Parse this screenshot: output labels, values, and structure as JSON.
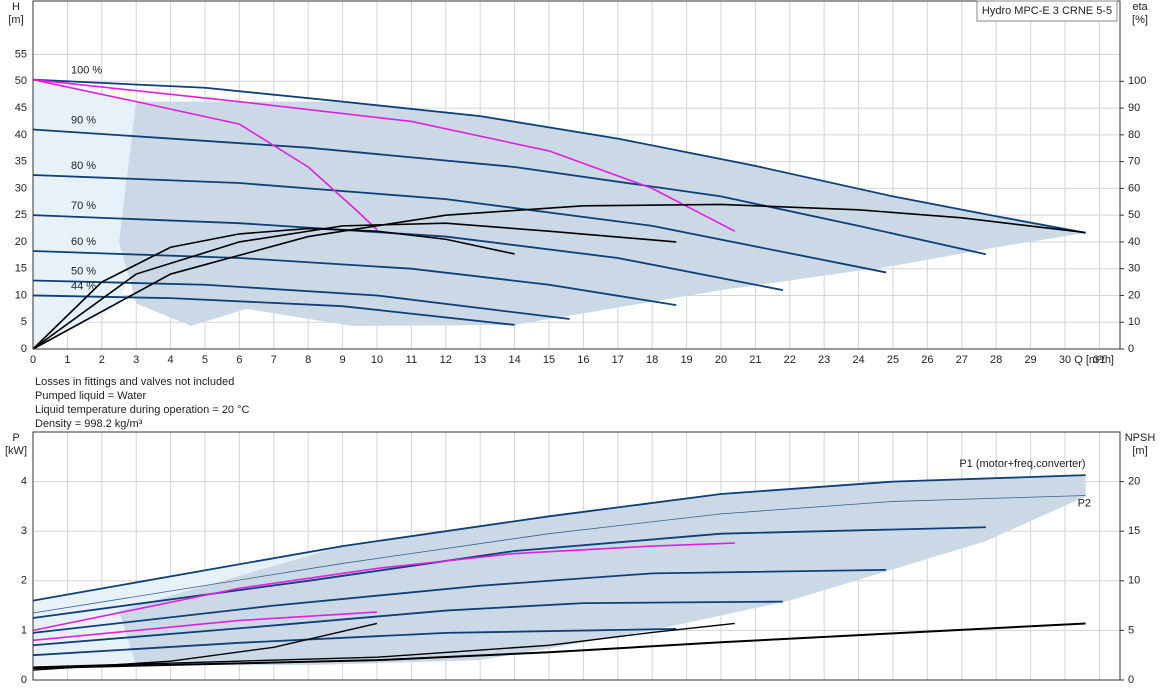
{
  "notes": [
    "Losses in fittings and valves not included",
    "Pumped liquid = Water",
    "Liquid temperature during operation = 20 °C",
    "Density = 998.2 kg/m³"
  ],
  "chart_data": [
    {
      "type": "line",
      "title": "Hydro MPC-E 3 CRNE 5-5",
      "ylabel": "H",
      "yunit": "[m]",
      "y2label": "eta",
      "y2unit": "[%]",
      "xlabel": "Q [m³/h]",
      "xlim": [
        0,
        31.6
      ],
      "xticks": [
        0,
        1,
        2,
        3,
        4,
        5,
        6,
        7,
        8,
        9,
        10,
        11,
        12,
        13,
        14,
        15,
        16,
        17,
        18,
        19,
        20,
        21,
        22,
        23,
        24,
        25,
        26,
        27,
        28,
        29,
        30,
        31
      ],
      "ylim": [
        0,
        65
      ],
      "yticks": [
        0,
        5,
        10,
        15,
        20,
        25,
        30,
        35,
        40,
        45,
        50,
        55
      ],
      "y2lim": [
        0,
        130
      ],
      "y2ticks": [
        0,
        10,
        20,
        30,
        40,
        50,
        60,
        70,
        80,
        90,
        100
      ],
      "xtick_labels": true,
      "grid": true,
      "regions": [
        {
          "color": "#e6f1fa",
          "x": [
            0,
            3,
            3,
            2.5,
            0
          ],
          "values": [
            50.3,
            46.2,
            20,
            8,
            0
          ]
        },
        {
          "color": "#cbd9e6",
          "x": [
            3,
            6,
            9,
            13,
            17,
            21,
            25,
            28,
            30.6,
            28,
            25,
            20,
            14,
            9.3,
            6.2,
            4.6,
            3,
            2.5
          ],
          "values": [
            46.2,
            46.2,
            46.2,
            43.5,
            39.3,
            34.2,
            28.5,
            24.8,
            21.7,
            19,
            15.5,
            11,
            4.5,
            4.3,
            7.5,
            4.3,
            8.5,
            20
          ]
        }
      ],
      "series": [
        {
          "name": "100 %",
          "color": "#0d3f78",
          "width": 1.8,
          "label_at": "start",
          "x": [
            0,
            5,
            9,
            13,
            17,
            21,
            25,
            28,
            30.6
          ],
          "values": [
            50.3,
            48.8,
            46.2,
            43.5,
            39.3,
            34.2,
            28.5,
            24.8,
            21.7
          ]
        },
        {
          "name": "90 %",
          "color": "#0d3f78",
          "width": 1.8,
          "label_at": "start",
          "x": [
            0,
            8,
            14,
            20,
            24,
            27.7
          ],
          "values": [
            41,
            37.6,
            34,
            28.5,
            23,
            17.7
          ]
        },
        {
          "name": "80 %",
          "color": "#0d3f78",
          "width": 1.8,
          "label_at": "start",
          "x": [
            0,
            6,
            12,
            18,
            24.8
          ],
          "values": [
            32.5,
            31,
            28,
            23,
            14.3
          ]
        },
        {
          "name": "70 %",
          "color": "#0d3f78",
          "width": 1.8,
          "label_at": "start",
          "x": [
            0,
            6,
            12,
            17,
            21.8
          ],
          "values": [
            25,
            23.5,
            21,
            17,
            11
          ]
        },
        {
          "name": "60 %",
          "color": "#0d3f78",
          "width": 1.8,
          "label_at": "start",
          "x": [
            0,
            6,
            11,
            15,
            18.7
          ],
          "values": [
            18.3,
            17,
            15,
            12,
            8.2
          ]
        },
        {
          "name": "50 %",
          "color": "#0d3f78",
          "width": 1.8,
          "label_at": "start",
          "x": [
            0,
            5,
            10,
            15.6
          ],
          "values": [
            12.8,
            12,
            10,
            5.6
          ]
        },
        {
          "name": "44 %",
          "color": "#0d3f78",
          "width": 1.8,
          "label_at": "start",
          "x": [
            0,
            4,
            9,
            14
          ],
          "values": [
            10,
            9.5,
            8,
            4.5
          ]
        },
        {
          "color": "#e020e0",
          "width": 1.6,
          "x": [
            0,
            3,
            6,
            8,
            9.3,
            10
          ],
          "values": [
            50.3,
            46.2,
            42,
            34,
            26.5,
            22.3
          ]
        },
        {
          "color": "#e020e0",
          "width": 1.6,
          "x": [
            0,
            6,
            11,
            15,
            18,
            20.4
          ],
          "values": [
            50.3,
            46.2,
            42.5,
            37,
            30,
            22
          ]
        },
        {
          "color": "#000000",
          "width": 1.6,
          "axis": "y2",
          "x": [
            0,
            4,
            8,
            12,
            16,
            20,
            24,
            27,
            30.6
          ],
          "values": [
            0,
            28,
            42,
            50,
            53.5,
            54,
            52,
            49,
            43.5
          ]
        },
        {
          "color": "#000000",
          "width": 1.6,
          "axis": "y2",
          "x": [
            0,
            3,
            6,
            9,
            12,
            15,
            18.7
          ],
          "values": [
            0,
            28,
            40,
            46,
            47,
            44,
            40
          ]
        },
        {
          "color": "#000000",
          "width": 1.6,
          "axis": "y2",
          "x": [
            0,
            2,
            4,
            6,
            8,
            10,
            12,
            14
          ],
          "values": [
            0,
            25,
            38,
            43,
            45,
            44,
            41,
            35.5
          ]
        }
      ]
    },
    {
      "type": "line",
      "ylabel": "P",
      "yunit": "[kW]",
      "y2label": "NPSH",
      "y2unit": "[m]",
      "xlim": [
        0,
        31.6
      ],
      "xticks": [
        0,
        1,
        2,
        3,
        4,
        5,
        6,
        7,
        8,
        9,
        10,
        11,
        12,
        13,
        14,
        15,
        16,
        17,
        18,
        19,
        20,
        21,
        22,
        23,
        24,
        25,
        26,
        27,
        28,
        29,
        30,
        31
      ],
      "ylim": [
        0,
        5
      ],
      "yticks": [
        0,
        1,
        2,
        3,
        4
      ],
      "y2lim": [
        0,
        25
      ],
      "y2ticks": [
        0,
        5,
        10,
        15,
        20
      ],
      "xtick_labels": false,
      "grid": true,
      "regions": [
        {
          "color": "#e6f1fa",
          "x": [
            0,
            9,
            3,
            0
          ],
          "values": [
            1.6,
            2.7,
            0.3,
            0.3
          ]
        },
        {
          "color": "#cbd9e6",
          "x": [
            9,
            15,
            20,
            25,
            30.6,
            30.6,
            27.7,
            22,
            18,
            13,
            8,
            3,
            2.5
          ],
          "values": [
            2.7,
            3.3,
            3.75,
            4.0,
            4.13,
            3.7,
            2.8,
            1.6,
            1.0,
            0.4,
            0.3,
            0.3,
            1.4
          ]
        }
      ],
      "series": [
        {
          "name": "P1 (motor+freq.converter)",
          "color": "#0d3f78",
          "width": 1.8,
          "label_at": "end-above",
          "x": [
            0,
            9,
            15,
            20,
            25,
            30.6
          ],
          "values": [
            1.6,
            2.7,
            3.3,
            3.75,
            4.0,
            4.13
          ]
        },
        {
          "name": "P2",
          "color": "#3a5f8a",
          "width": 0.8,
          "label_at": "end-below",
          "x": [
            0,
            9,
            15,
            20,
            25,
            30.6
          ],
          "values": [
            1.35,
            2.35,
            2.95,
            3.35,
            3.6,
            3.72
          ]
        },
        {
          "color": "#0d3f78",
          "width": 1.8,
          "x": [
            0,
            8,
            14,
            20,
            27.7
          ],
          "values": [
            1.25,
            2.0,
            2.6,
            2.95,
            3.08
          ]
        },
        {
          "color": "#0d3f78",
          "width": 1.8,
          "x": [
            0,
            7,
            13,
            18,
            24.8
          ],
          "values": [
            0.95,
            1.5,
            1.9,
            2.15,
            2.22
          ]
        },
        {
          "color": "#0d3f78",
          "width": 1.8,
          "x": [
            0,
            7,
            12,
            16,
            21.8
          ],
          "values": [
            0.7,
            1.1,
            1.4,
            1.55,
            1.58
          ]
        },
        {
          "color": "#0d3f78",
          "width": 1.8,
          "x": [
            0,
            6,
            12,
            18.7
          ],
          "values": [
            0.5,
            0.75,
            0.95,
            1.03
          ]
        },
        {
          "color": "#e020e0",
          "width": 1.6,
          "x": [
            0,
            6,
            10,
            14,
            18,
            20.4
          ],
          "values": [
            1.0,
            1.85,
            2.25,
            2.55,
            2.7,
            2.76
          ]
        },
        {
          "color": "#e020e0",
          "width": 1.6,
          "x": [
            0,
            3,
            6,
            10
          ],
          "values": [
            0.8,
            1.0,
            1.2,
            1.37
          ]
        },
        {
          "color": "#000000",
          "width": 2,
          "axis": "y2",
          "x": [
            0,
            10,
            15,
            20,
            25,
            30.6
          ],
          "values": [
            1.2,
            2,
            2.8,
            3.8,
            4.7,
            5.7
          ]
        },
        {
          "color": "#000000",
          "width": 1.4,
          "axis": "y2",
          "x": [
            0,
            4,
            7,
            10
          ],
          "values": [
            1,
            1.9,
            3.3,
            5.7
          ]
        },
        {
          "color": "#000000",
          "width": 1.4,
          "axis": "y2",
          "x": [
            0,
            10,
            15,
            18,
            20.4
          ],
          "values": [
            1.3,
            2.3,
            3.5,
            4.8,
            5.7
          ]
        }
      ]
    }
  ]
}
